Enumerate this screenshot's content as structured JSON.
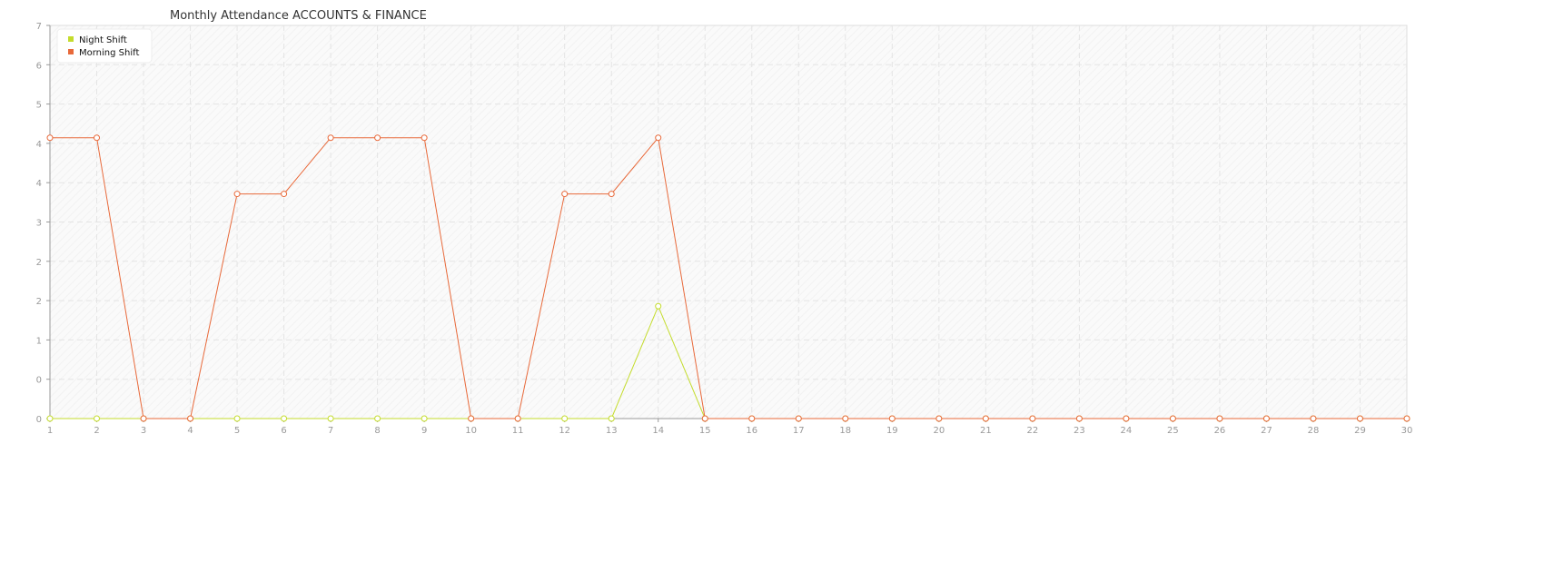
{
  "chart_data": {
    "type": "line",
    "title": "Monthly Attendance ACCOUNTS & FINANCE",
    "x": [
      1,
      2,
      3,
      4,
      5,
      6,
      7,
      8,
      9,
      10,
      11,
      12,
      13,
      14,
      15,
      16,
      17,
      18,
      19,
      20,
      21,
      22,
      23,
      24,
      25,
      26,
      27,
      28,
      29,
      30
    ],
    "ylim": [
      0,
      7
    ],
    "y_tick_labels": [
      "0",
      "0",
      "1",
      "2",
      "2",
      "3",
      "4",
      "4",
      "5",
      "6",
      "7"
    ],
    "grid": true,
    "legend_position": "top-left",
    "series": [
      {
        "name": "Night Shift",
        "color": "#c4dc2c",
        "values": [
          0,
          0,
          0,
          0,
          0,
          0,
          0,
          0,
          0,
          0,
          0,
          0,
          0,
          2,
          0,
          0,
          0,
          0,
          0,
          0,
          0,
          0,
          0,
          0,
          0,
          0,
          0,
          0,
          0,
          0
        ]
      },
      {
        "name": "Morning Shift",
        "color": "#e8693a",
        "values": [
          5,
          5,
          0,
          0,
          4,
          4,
          5,
          5,
          5,
          0,
          0,
          4,
          4,
          5,
          0,
          0,
          0,
          0,
          0,
          0,
          0,
          0,
          0,
          0,
          0,
          0,
          0,
          0,
          0,
          0
        ]
      }
    ]
  }
}
